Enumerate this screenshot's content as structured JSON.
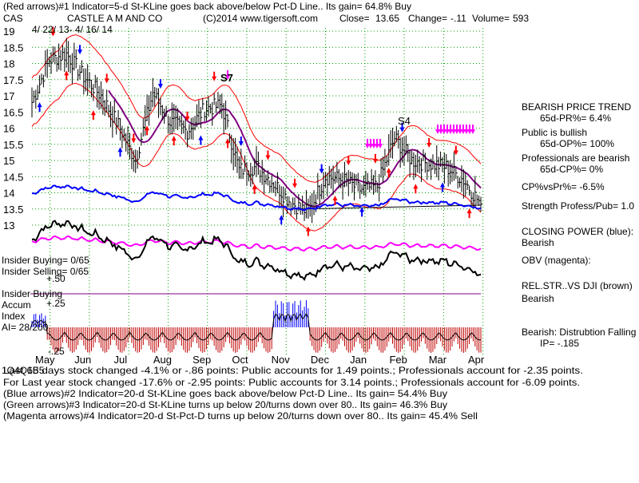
{
  "header": {
    "line1": "(Red arrows)#1 Indicator=5-d St-KLine goes back above/below Pct-D Line.. Its gain= 64.8% Buy",
    "ticker": "CAS",
    "company": "CASTLE A M AND CO",
    "copyright": "(C)2014 www.tigersoft.com",
    "close_label": "Close=",
    "close_value": "13.65",
    "change_label": "Change=",
    "change_value": "-.11",
    "volume_label": "Volume=",
    "volume_value": "593",
    "date_range": "4/ 22/ 13- 4/ 16/ 14"
  },
  "chart_data": {
    "type": "line",
    "title": "CASTLE A M AND CO",
    "ylim": [
      12.8,
      19.1
    ],
    "y_ticks": [
      "19",
      "18.5",
      "18",
      "17.5",
      "17",
      "16.5",
      "16",
      "15.5",
      "15",
      "14.5",
      "14",
      "13.5",
      "13"
    ],
    "x_ticks": [
      "May",
      "Jun",
      "Jul",
      "Aug",
      "Sep",
      "Oct",
      "Nov",
      "Dec",
      "Jan",
      "Feb",
      "Mar",
      "Apr"
    ],
    "grid": true,
    "series": [
      {
        "name": "",
        "color": "#000000",
        "x": [
          "Apr 22",
          "May 6",
          "May 20",
          "Jun 3",
          "Jun 17",
          "Jul 1",
          "Jul 15",
          "Jul 29",
          "Aug 12",
          "Aug 26",
          "Sep 9",
          "Sep 23",
          "Oct 7",
          "Oct 21",
          "Nov 4",
          "Nov 18",
          "Dec 2",
          "Dec 16",
          "Dec 30",
          "Jan 13",
          "Jan 27",
          "Feb 10",
          "Feb 24",
          "Mar 10",
          "Mar 24",
          "Apr 7",
          "Apr 16"
        ],
        "values": [
          16.8,
          18.1,
          18.3,
          17.6,
          17.0,
          16.1,
          15.0,
          17.1,
          16.2,
          15.9,
          16.6,
          16.7,
          14.7,
          14.8,
          14.3,
          13.7,
          13.4,
          14.5,
          14.4,
          14.1,
          14.2,
          15.7,
          15.0,
          14.9,
          14.8,
          14.4,
          13.65
        ]
      }
    ],
    "annotations": [
      "S7",
      "S4"
    ]
  },
  "indicators": {
    "insider_buying": "Insider Buying= 0/65",
    "insider_selling": "Insider Selling= 0/65",
    "plus50": "+.50",
    "insider_buying_line": "Insider Buying",
    "accum": "Accum",
    "plus25": "+.25",
    "index": "Index",
    "ai": "AI= 28/200",
    "minus25": "-.25"
  },
  "right_panel": {
    "l1": "BEARISH PRICE TREND",
    "l2": "65d-PR%= 6.4%",
    "l3": "Public is bullish",
    "l4": "65d-OP%= 100%",
    "l5": "Professionals are bearish",
    "l6": "65d-CP%= 0%",
    "l7": "CP%vsPr%= -6.5%",
    "l8": "Strength Profess/Pub= 1.0",
    "l9": "CLOSING POWER (blue):",
    "l10": "Bearish",
    "l11": "OBV (magenta):",
    "l12": "REL.STR..VS DJI (brown)",
    "l13": "Bearish",
    "l14": "Bearish: Distrubtion Falling",
    "l15": "IP= -.185"
  },
  "footer": {
    "f1": "Last 65 days stock changed -4.1% or -.86 points: Public accounts for 1.49 points.; Professionals account for -2.35 points.",
    "f1_overlap": "1Q4Q1B5",
    "f2": "For Last year stock changed -17.6% or -2.95 points: Public accounts for 3.14 points.; Professionals account for -6.09 points.",
    "f3": "(Blue arrows)#2 Indicator=20-d St-KLine goes back above/below Pct-D Line.. Its gain= 54.4% Buy",
    "f4": "(Green arrows)#3 Indicator=20-d St-KLine turns up below 20/turns down over 80.. Its gain= 46.3% Buy",
    "f5": "(Magenta arrows)#4 Indicator=20-d St-Pct-D turns up below 20/turns down over 80.. Its gain= 45.4% Sell"
  },
  "colors": {
    "price": "#000000",
    "bands": "#ff0000",
    "ma": "#800080",
    "closing_power": "#0000ff",
    "obv": "#ff00ff",
    "rel_str": "#000000",
    "grid": "#00a000",
    "accum_neg": "#c00000",
    "accum_pos": "#0000ff"
  }
}
